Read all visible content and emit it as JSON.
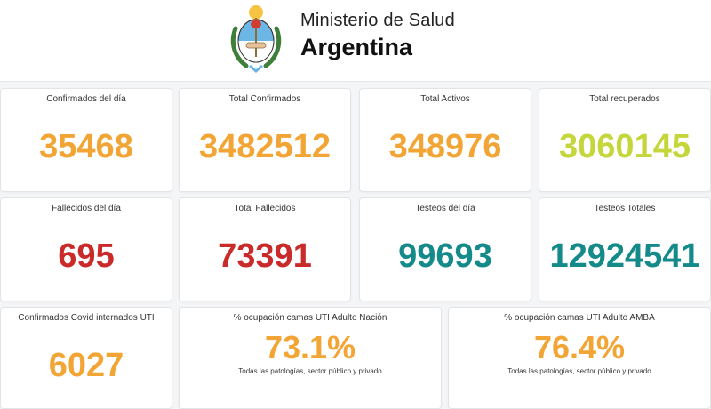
{
  "header": {
    "line1": "Ministerio de Salud",
    "line2": "Argentina",
    "colors": {
      "seal_blue": "#6cb6e6",
      "seal_red": "#d33b2f",
      "laurel": "#3f7f3a"
    }
  },
  "row1": [
    {
      "label": "Confirmados del día",
      "value": "35468"
    },
    {
      "label": "Total Confirmados",
      "value": "3482512"
    },
    {
      "label": "Total Activos",
      "value": "348976"
    },
    {
      "label": "Total recuperados",
      "value": "3060145"
    }
  ],
  "row2": [
    {
      "label": "Fallecidos del día",
      "value": "695"
    },
    {
      "label": "Total Fallecidos",
      "value": "73391"
    },
    {
      "label": "Testeos del día",
      "value": "99693"
    },
    {
      "label": "Testeos Totales",
      "value": "12924541"
    }
  ],
  "row3": [
    {
      "label": "Confirmados Covid internados UTI",
      "value": "6027"
    },
    {
      "label": "% ocupación camas UTI Adulto Nación",
      "value": "73.1%",
      "note": "Todas las patologías, sector público y privado"
    },
    {
      "label": "% ocupación camas UTI Adulto AMBA",
      "value": "76.4%",
      "note": "Todas las patologías, sector público y privado"
    }
  ],
  "colors": {
    "orange": "#f2a534",
    "lime": "#c5d63a",
    "red": "#c92b2b",
    "teal": "#158a8a"
  }
}
